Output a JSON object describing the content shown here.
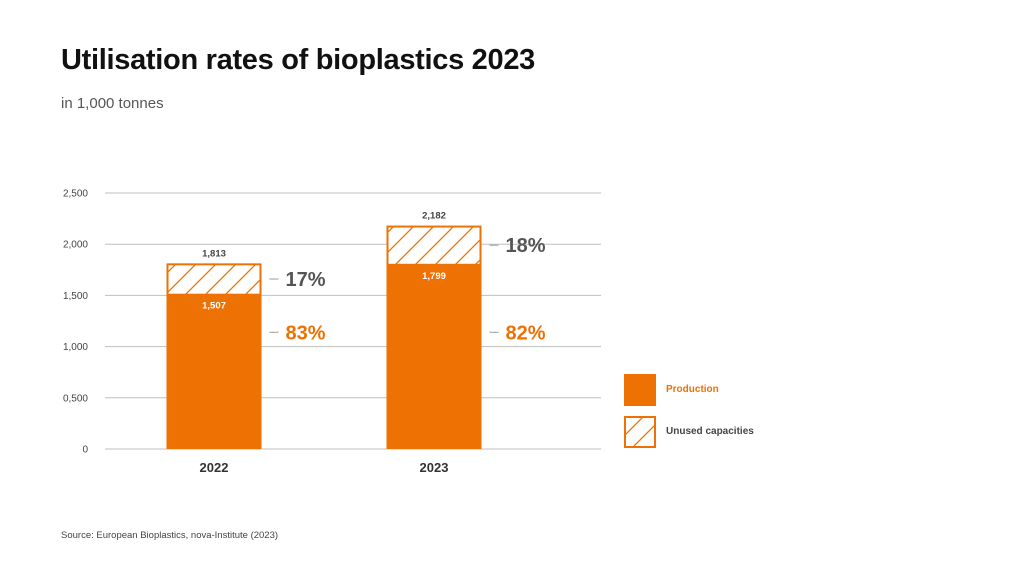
{
  "title": "Utilisation rates of bioplastics 2023",
  "subtitle": "in 1,000 tonnes",
  "source": "Source: European Bioplastics, nova-Institute (2023)",
  "colors": {
    "production": "#EE7203",
    "grid": "#BFBFBF",
    "tick": "#444444",
    "unused_pct": "#555555",
    "axis_year": "#333333"
  },
  "legend": {
    "production": "Production",
    "unused": "Unused capacities"
  },
  "chart_data": {
    "type": "bar",
    "stacked": true,
    "categories": [
      "2022",
      "2023"
    ],
    "series": [
      {
        "name": "Production",
        "values": [
          1507,
          1799
        ],
        "value_labels": [
          "1,507",
          "1,799"
        ],
        "share_labels": [
          "83%",
          "82%"
        ]
      },
      {
        "name": "Unused capacities",
        "values": [
          306,
          383
        ],
        "share_labels": [
          "17%",
          "18%"
        ]
      }
    ],
    "totals": [
      1813,
      2182
    ],
    "total_labels": [
      "1,813",
      "2,182"
    ],
    "title": "Utilisation rates of bioplastics 2023",
    "ylabel": "in 1,000 tonnes",
    "ylim": [
      0,
      2500
    ],
    "yticks": [
      0,
      500,
      1000,
      1500,
      2000,
      2500
    ],
    "ytick_labels": [
      "0",
      "0,500",
      "1,000",
      "1,500",
      "2,000",
      "2,500"
    ],
    "grid": true,
    "legend_position": "right"
  }
}
